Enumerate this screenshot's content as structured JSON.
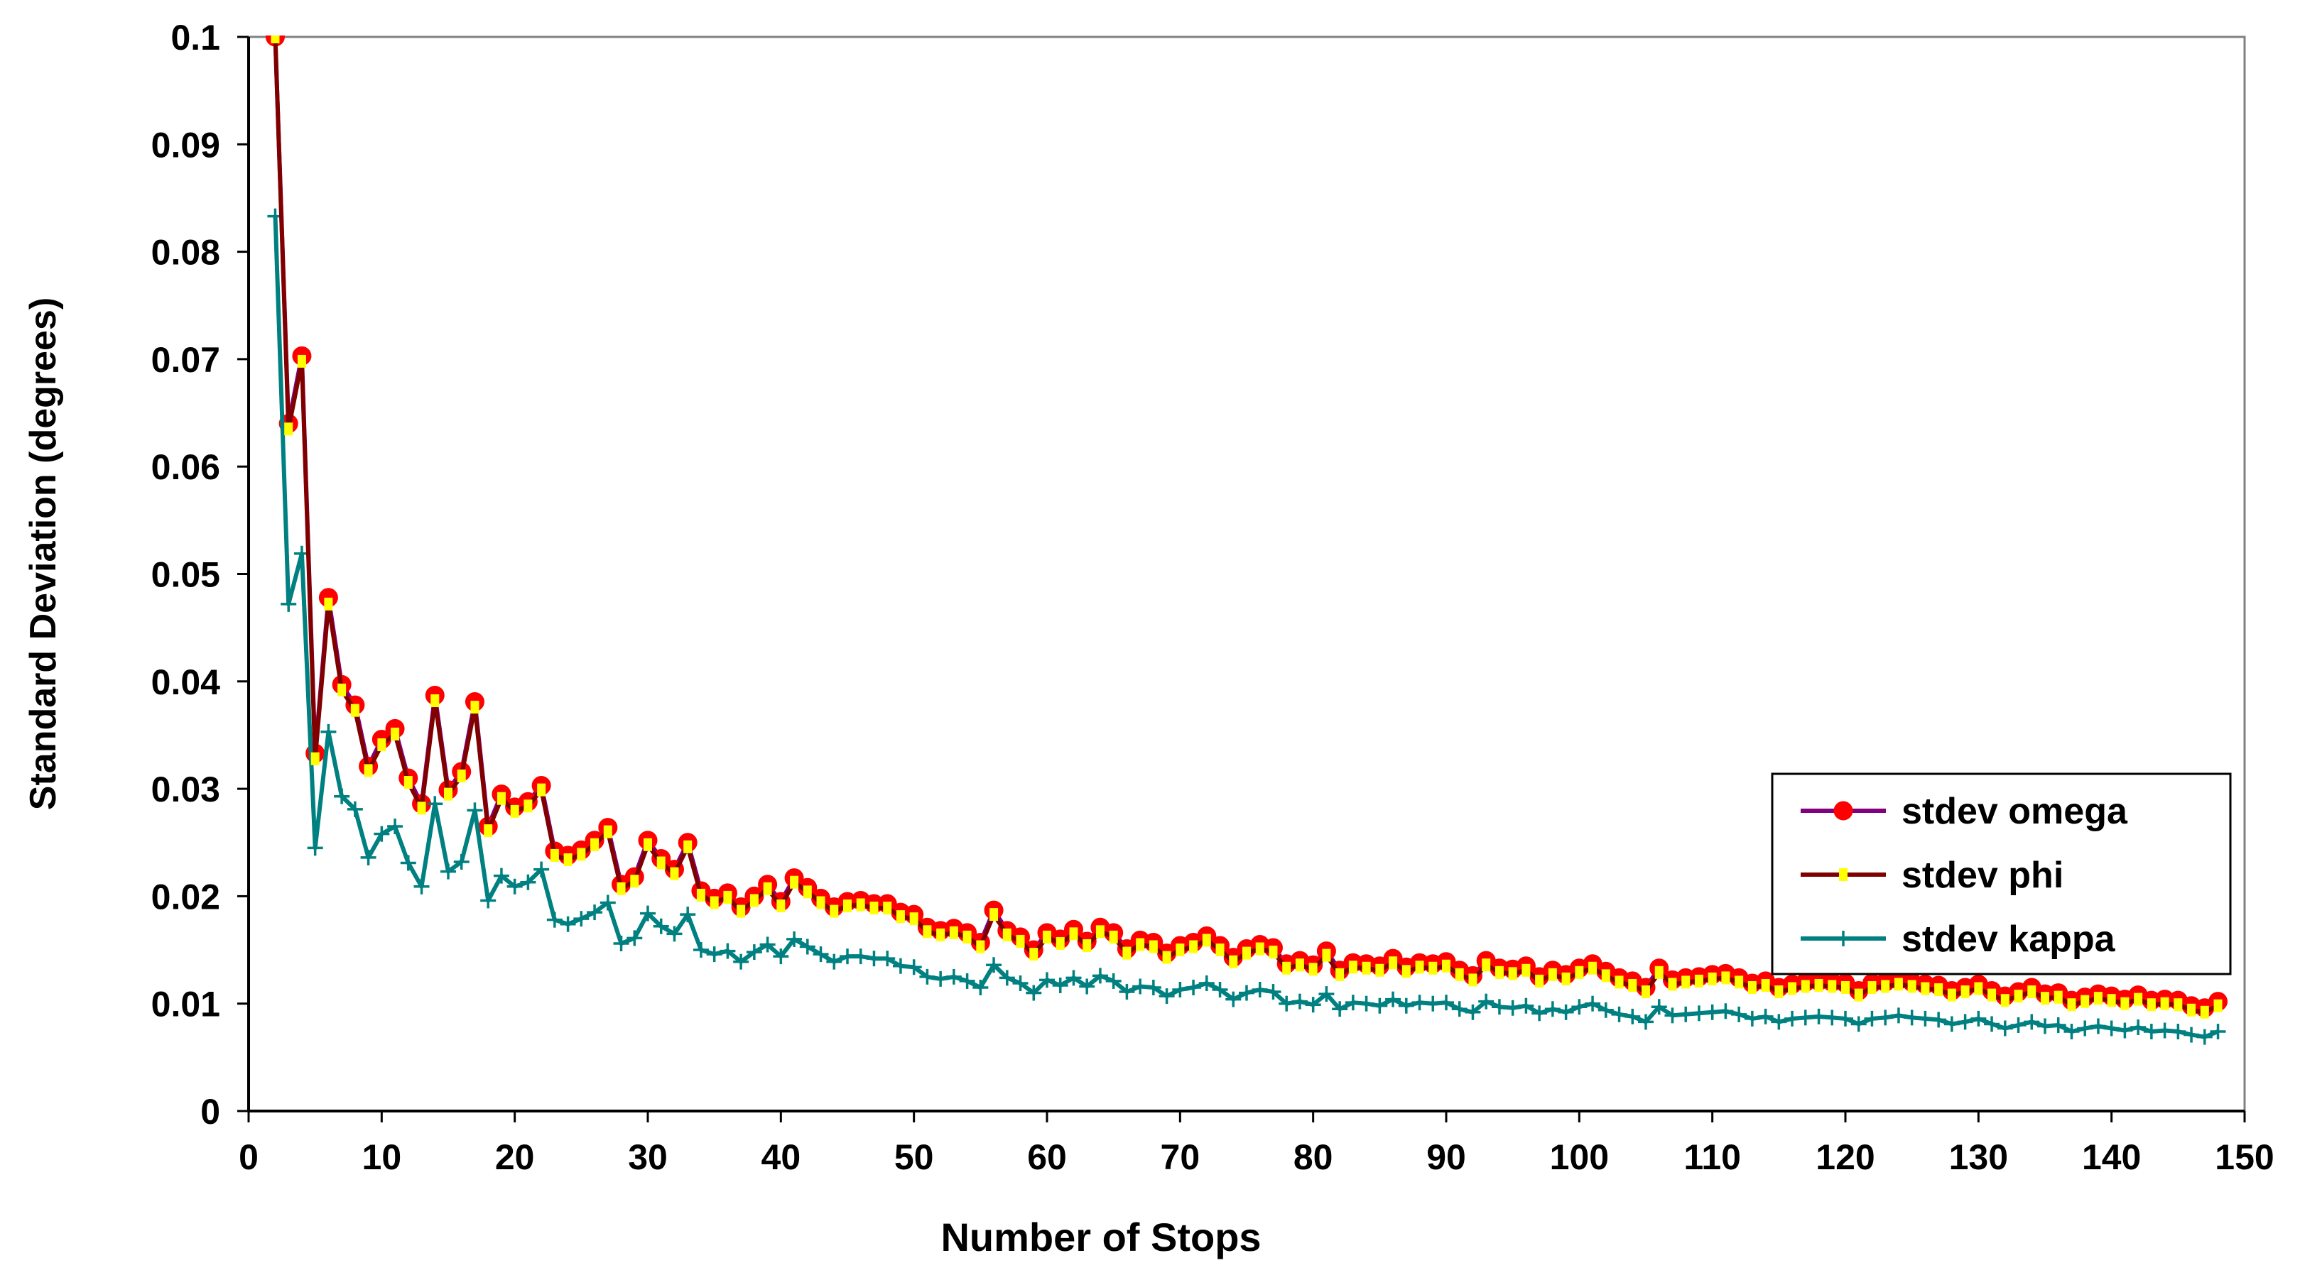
{
  "chart_data": {
    "type": "line",
    "title": "",
    "xlabel": "Number of Stops",
    "ylabel": "Standard Deviation (degrees)",
    "xlim": [
      0,
      150
    ],
    "ylim": [
      0,
      0.1
    ],
    "x_ticks": [
      "0",
      "10",
      "20",
      "30",
      "40",
      "50",
      "60",
      "70",
      "80",
      "90",
      "100",
      "110",
      "120",
      "130",
      "140",
      "150"
    ],
    "y_ticks": [
      "0",
      "0.01",
      "0.02",
      "0.03",
      "0.04",
      "0.05",
      "0.06",
      "0.07",
      "0.08",
      "0.09",
      "0.1"
    ],
    "grid": true,
    "legend_position": "right",
    "series": [
      {
        "name": "stdev omega",
        "color": "#800080",
        "marker": "circle",
        "marker_color": "#ff0000",
        "x": [
          2,
          3,
          4,
          5,
          6,
          7,
          8,
          9,
          10,
          11,
          12,
          13,
          14,
          15,
          16,
          17,
          18,
          19,
          20,
          21,
          22,
          23,
          24,
          25,
          26,
          27,
          28,
          29,
          30,
          31,
          32,
          33,
          34,
          35,
          36,
          37,
          38,
          39,
          40,
          41,
          42,
          43,
          44,
          45,
          46,
          47,
          48,
          49,
          50,
          51,
          52,
          53,
          54,
          55,
          56,
          57,
          58,
          59,
          60,
          61,
          62,
          63,
          64,
          65,
          66,
          67,
          68,
          69,
          70,
          71,
          72,
          73,
          74,
          75,
          76,
          77,
          78,
          79,
          80,
          81,
          82,
          83,
          84,
          85,
          86,
          87,
          88,
          89,
          90,
          91,
          92,
          93,
          94,
          95,
          96,
          97,
          98,
          99,
          100,
          101,
          102,
          103,
          104,
          105,
          106,
          107,
          108,
          109,
          110,
          111,
          112,
          113,
          114,
          115,
          116,
          117,
          118,
          119,
          120,
          121,
          122,
          123,
          124,
          125,
          126,
          127,
          128,
          129,
          130,
          131,
          132,
          133,
          134,
          135,
          136,
          137,
          138,
          139,
          140,
          141,
          142,
          143,
          144,
          145,
          146,
          147,
          148
        ],
        "values": [
          0.1,
          0.064,
          0.0703,
          0.0333,
          0.0478,
          0.0397,
          0.0378,
          0.0321,
          0.0346,
          0.0356,
          0.031,
          0.0286,
          0.0387,
          0.0299,
          0.0316,
          0.0381,
          0.0265,
          0.0295,
          0.0283,
          0.0288,
          0.0303,
          0.0242,
          0.0238,
          0.0243,
          0.0252,
          0.0264,
          0.0211,
          0.0218,
          0.0252,
          0.0235,
          0.0225,
          0.025,
          0.0205,
          0.0198,
          0.0203,
          0.019,
          0.02,
          0.0211,
          0.0195,
          0.0217,
          0.0208,
          0.0198,
          0.019,
          0.0195,
          0.0196,
          0.0193,
          0.0193,
          0.0185,
          0.0183,
          0.0171,
          0.0168,
          0.017,
          0.0166,
          0.0157,
          0.0187,
          0.0168,
          0.0162,
          0.015,
          0.0166,
          0.016,
          0.0169,
          0.0158,
          0.0171,
          0.0166,
          0.0151,
          0.0159,
          0.0157,
          0.0147,
          0.0154,
          0.0157,
          0.0163,
          0.0154,
          0.0143,
          0.0151,
          0.0155,
          0.0152,
          0.0137,
          0.014,
          0.0136,
          0.0149,
          0.0131,
          0.0138,
          0.0137,
          0.0135,
          0.0142,
          0.0134,
          0.0138,
          0.0137,
          0.0139,
          0.0131,
          0.0126,
          0.014,
          0.0133,
          0.0132,
          0.0135,
          0.0125,
          0.0131,
          0.0127,
          0.0133,
          0.0137,
          0.013,
          0.0124,
          0.0121,
          0.0115,
          0.0133,
          0.0122,
          0.0124,
          0.0125,
          0.0127,
          0.0128,
          0.0124,
          0.0119,
          0.0121,
          0.0115,
          0.0118,
          0.012,
          0.0121,
          0.012,
          0.0119,
          0.0112,
          0.0119,
          0.012,
          0.0122,
          0.012,
          0.0118,
          0.0117,
          0.0112,
          0.0115,
          0.0118,
          0.0112,
          0.0107,
          0.0111,
          0.0115,
          0.0109,
          0.011,
          0.0103,
          0.0106,
          0.0109,
          0.0107,
          0.0104,
          0.0108,
          0.0103,
          0.0104,
          0.0103,
          0.0098,
          0.0096,
          0.0102
        ]
      },
      {
        "name": "stdev phi",
        "color": "#800000",
        "marker": "dash",
        "marker_color": "#ffff00",
        "x": [
          2,
          3,
          4,
          5,
          6,
          7,
          8,
          9,
          10,
          11,
          12,
          13,
          14,
          15,
          16,
          17,
          18,
          19,
          20,
          21,
          22,
          23,
          24,
          25,
          26,
          27,
          28,
          29,
          30,
          31,
          32,
          33,
          34,
          35,
          36,
          37,
          38,
          39,
          40,
          41,
          42,
          43,
          44,
          45,
          46,
          47,
          48,
          49,
          50,
          51,
          52,
          53,
          54,
          55,
          56,
          57,
          58,
          59,
          60,
          61,
          62,
          63,
          64,
          65,
          66,
          67,
          68,
          69,
          70,
          71,
          72,
          73,
          74,
          75,
          76,
          77,
          78,
          79,
          80,
          81,
          82,
          83,
          84,
          85,
          86,
          87,
          88,
          89,
          90,
          91,
          92,
          93,
          94,
          95,
          96,
          97,
          98,
          99,
          100,
          101,
          102,
          103,
          104,
          105,
          106,
          107,
          108,
          109,
          110,
          111,
          112,
          113,
          114,
          115,
          116,
          117,
          118,
          119,
          120,
          121,
          122,
          123,
          124,
          125,
          126,
          127,
          128,
          129,
          130,
          131,
          132,
          133,
          134,
          135,
          136,
          137,
          138,
          139,
          140,
          141,
          142,
          143,
          144,
          145,
          146,
          147,
          148
        ],
        "values": [
          0.1,
          0.0635,
          0.0698,
          0.0328,
          0.0472,
          0.0392,
          0.0373,
          0.0317,
          0.0341,
          0.0351,
          0.0306,
          0.0282,
          0.0382,
          0.0295,
          0.0312,
          0.0376,
          0.0261,
          0.0291,
          0.0279,
          0.0284,
          0.0299,
          0.0238,
          0.0234,
          0.0239,
          0.0248,
          0.026,
          0.0207,
          0.0214,
          0.0248,
          0.0231,
          0.0221,
          0.0246,
          0.0201,
          0.0194,
          0.0199,
          0.0186,
          0.0196,
          0.0207,
          0.0191,
          0.0213,
          0.0204,
          0.0194,
          0.0186,
          0.0191,
          0.0192,
          0.0189,
          0.0189,
          0.0181,
          0.0179,
          0.0167,
          0.0164,
          0.0166,
          0.0162,
          0.0153,
          0.0183,
          0.0164,
          0.0158,
          0.0146,
          0.0162,
          0.0156,
          0.0165,
          0.0154,
          0.0167,
          0.0162,
          0.0147,
          0.0155,
          0.0153,
          0.0143,
          0.015,
          0.0153,
          0.0159,
          0.015,
          0.0139,
          0.0147,
          0.0151,
          0.0148,
          0.0133,
          0.0136,
          0.0132,
          0.0145,
          0.0127,
          0.0134,
          0.0133,
          0.0131,
          0.0138,
          0.013,
          0.0134,
          0.0133,
          0.0135,
          0.0127,
          0.0122,
          0.0136,
          0.0129,
          0.0128,
          0.0131,
          0.0121,
          0.0127,
          0.0123,
          0.0129,
          0.0133,
          0.0126,
          0.012,
          0.0117,
          0.0111,
          0.0129,
          0.0118,
          0.012,
          0.0121,
          0.0123,
          0.0124,
          0.012,
          0.0115,
          0.0117,
          0.0111,
          0.0114,
          0.0116,
          0.0117,
          0.0116,
          0.0115,
          0.0108,
          0.0115,
          0.0116,
          0.0118,
          0.0116,
          0.0114,
          0.0113,
          0.0108,
          0.0111,
          0.0114,
          0.0108,
          0.0103,
          0.0107,
          0.0111,
          0.0105,
          0.0106,
          0.0099,
          0.0102,
          0.0105,
          0.0103,
          0.01,
          0.0104,
          0.0099,
          0.01,
          0.0099,
          0.0094,
          0.0092,
          0.0098
        ]
      },
      {
        "name": "stdev kappa",
        "color": "#008080",
        "marker": "plus",
        "marker_color": "#008080",
        "x": [
          2,
          3,
          4,
          5,
          6,
          7,
          8,
          9,
          10,
          11,
          12,
          13,
          14,
          15,
          16,
          17,
          18,
          19,
          20,
          21,
          22,
          23,
          24,
          25,
          26,
          27,
          28,
          29,
          30,
          31,
          32,
          33,
          34,
          35,
          36,
          37,
          38,
          39,
          40,
          41,
          42,
          43,
          44,
          45,
          46,
          47,
          48,
          49,
          50,
          51,
          52,
          53,
          54,
          55,
          56,
          57,
          58,
          59,
          60,
          61,
          62,
          63,
          64,
          65,
          66,
          67,
          68,
          69,
          70,
          71,
          72,
          73,
          74,
          75,
          76,
          77,
          78,
          79,
          80,
          81,
          82,
          83,
          84,
          85,
          86,
          87,
          88,
          89,
          90,
          91,
          92,
          93,
          94,
          95,
          96,
          97,
          98,
          99,
          100,
          101,
          102,
          103,
          104,
          105,
          106,
          107,
          108,
          109,
          110,
          111,
          112,
          113,
          114,
          115,
          116,
          117,
          118,
          119,
          120,
          121,
          122,
          123,
          124,
          125,
          126,
          127,
          128,
          129,
          130,
          131,
          132,
          133,
          134,
          135,
          136,
          137,
          138,
          139,
          140,
          141,
          142,
          143,
          144,
          145,
          146,
          147,
          148
        ],
        "values": [
          0.0833,
          0.0472,
          0.0519,
          0.0245,
          0.0353,
          0.0293,
          0.0281,
          0.0236,
          0.0258,
          0.0265,
          0.0231,
          0.0209,
          0.0286,
          0.0223,
          0.0232,
          0.028,
          0.0196,
          0.0219,
          0.0209,
          0.0213,
          0.0225,
          0.0178,
          0.0174,
          0.0179,
          0.0185,
          0.0194,
          0.0156,
          0.0161,
          0.0184,
          0.0172,
          0.0165,
          0.0183,
          0.015,
          0.0146,
          0.0149,
          0.0139,
          0.0148,
          0.0155,
          0.0144,
          0.016,
          0.0153,
          0.0146,
          0.0139,
          0.0144,
          0.0144,
          0.0142,
          0.0142,
          0.0135,
          0.0134,
          0.0125,
          0.0123,
          0.0125,
          0.0121,
          0.0115,
          0.0136,
          0.0124,
          0.0119,
          0.011,
          0.0122,
          0.0117,
          0.0124,
          0.0116,
          0.0126,
          0.0121,
          0.0111,
          0.0116,
          0.0115,
          0.0107,
          0.0113,
          0.0115,
          0.0119,
          0.0113,
          0.0104,
          0.011,
          0.0113,
          0.0111,
          0.01,
          0.0102,
          0.0099,
          0.0109,
          0.0095,
          0.0101,
          0.01,
          0.0098,
          0.0104,
          0.0098,
          0.0101,
          0.01,
          0.0101,
          0.0095,
          0.0092,
          0.0102,
          0.0097,
          0.0096,
          0.0098,
          0.0091,
          0.0095,
          0.0092,
          0.0097,
          0.01,
          0.0094,
          0.009,
          0.0088,
          0.0083,
          0.0097,
          0.0089,
          0.009,
          0.0091,
          0.0092,
          0.0093,
          0.009,
          0.0086,
          0.0088,
          0.0083,
          0.0086,
          0.0087,
          0.0088,
          0.0087,
          0.0086,
          0.0081,
          0.0086,
          0.0087,
          0.0089,
          0.0087,
          0.0086,
          0.0085,
          0.0081,
          0.0083,
          0.0086,
          0.0081,
          0.0077,
          0.008,
          0.0083,
          0.0079,
          0.008,
          0.0074,
          0.0077,
          0.0079,
          0.0077,
          0.0075,
          0.0078,
          0.0074,
          0.0075,
          0.0074,
          0.0071,
          0.0069,
          0.0074
        ]
      }
    ]
  }
}
